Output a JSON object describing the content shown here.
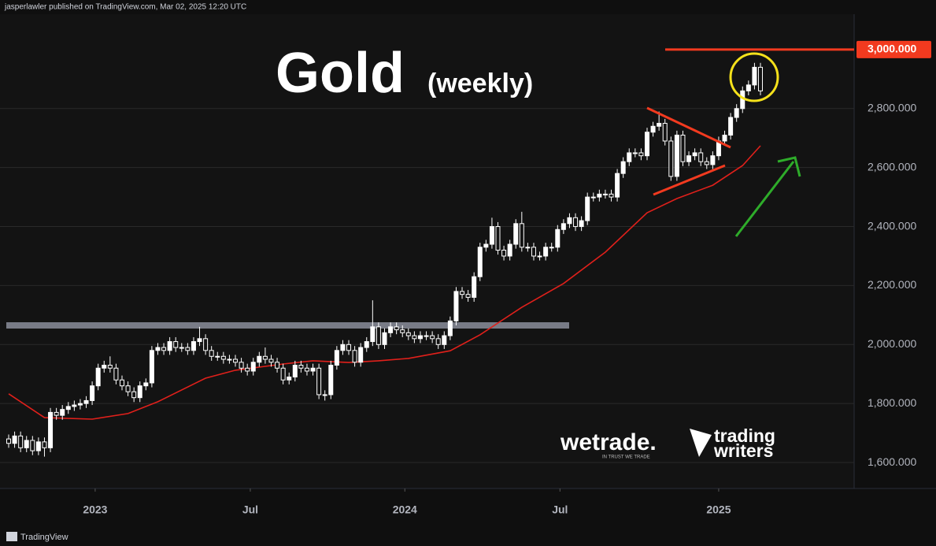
{
  "header": "jasperlawler published on TradingView.com, Mar 02, 2025 12:20 UTC",
  "footer": "TradingView",
  "watermarks": {
    "brand1": "wetrade.",
    "brand1_tagline": "IN TRUST WE TRADE",
    "brand2_line1": "trading",
    "brand2_line2": "writers"
  },
  "chart_data": {
    "type": "candlestick",
    "title": "Gold",
    "subtitle": "(weekly)",
    "up_color": "#ffffff",
    "down_color": "#131313",
    "grid": true,
    "ylim": [
      1512,
      3120
    ],
    "xlim": [
      -1.45,
      141.7
    ],
    "yticks": [
      {
        "value": 1600,
        "label": "1,600.000"
      },
      {
        "value": 1800,
        "label": "1,800.000"
      },
      {
        "value": 2000,
        "label": "2,000.000"
      },
      {
        "value": 2200,
        "label": "2,200.000"
      },
      {
        "value": 2400,
        "label": "2,400.000"
      },
      {
        "value": 2600,
        "label": "2,600.000"
      },
      {
        "value": 2800,
        "label": "2,800.000"
      }
    ],
    "xticks": [
      {
        "value": 14.5,
        "label": "2023"
      },
      {
        "value": 40.5,
        "label": "Jul"
      },
      {
        "value": 66.4,
        "label": "2024"
      },
      {
        "value": 92.4,
        "label": "Jul"
      },
      {
        "value": 119,
        "label": "2025"
      }
    ],
    "open": [
      1680,
      1665,
      1690,
      1650,
      1675,
      1640,
      1670,
      1650,
      1770,
      1760,
      1780,
      1790,
      1795,
      1800,
      1810,
      1860,
      1920,
      1930,
      1920,
      1880,
      1860,
      1840,
      1820,
      1860,
      1870,
      1980,
      1990,
      1980,
      2010,
      1990,
      1990,
      1980,
      2010,
      2020,
      1980,
      1960,
      1960,
      1950,
      1950,
      1940,
      1920,
      1910,
      1940,
      1960,
      1950,
      1940,
      1920,
      1880,
      1890,
      1930,
      1920,
      1910,
      1920,
      1830,
      1830,
      1930,
      1980,
      2000,
      1980,
      1940,
      1990,
      2010,
      2060,
      2000,
      2040,
      2060,
      2050,
      2040,
      2030,
      2020,
      2030,
      2030,
      2020,
      2000,
      2030,
      2080,
      2180,
      2170,
      2160,
      2230,
      2330,
      2340,
      2400,
      2320,
      2300,
      2340,
      2410,
      2330,
      2330,
      2300,
      2300,
      2330,
      2330,
      2390,
      2410,
      2430,
      2400,
      2420,
      2500,
      2500,
      2510,
      2510,
      2500,
      2580,
      2620,
      2650,
      2650,
      2640,
      2720,
      2740,
      2750,
      2690,
      2570,
      2710,
      2620,
      2640,
      2650,
      2620,
      2610,
      2640,
      2690,
      2710,
      2770,
      2800,
      2860,
      2880,
      2940
    ],
    "high": [
      1695,
      1705,
      1705,
      1690,
      1690,
      1685,
      1685,
      1785,
      1785,
      1795,
      1805,
      1810,
      1815,
      1825,
      1875,
      1935,
      1945,
      1960,
      1935,
      1895,
      1875,
      1855,
      1875,
      1885,
      1995,
      2005,
      2005,
      2025,
      2025,
      2005,
      2005,
      2025,
      2060,
      2035,
      1995,
      1975,
      1975,
      1965,
      1965,
      1955,
      1935,
      1955,
      1975,
      1990,
      1965,
      1955,
      1935,
      1905,
      1945,
      1945,
      1935,
      1935,
      1935,
      1845,
      1945,
      1995,
      2015,
      2015,
      1995,
      2005,
      2025,
      2150,
      2075,
      2055,
      2075,
      2075,
      2065,
      2055,
      2045,
      2045,
      2045,
      2045,
      2035,
      2045,
      2095,
      2195,
      2195,
      2185,
      2245,
      2345,
      2355,
      2430,
      2415,
      2335,
      2355,
      2425,
      2450,
      2345,
      2345,
      2315,
      2345,
      2345,
      2405,
      2425,
      2445,
      2445,
      2435,
      2515,
      2515,
      2525,
      2525,
      2525,
      2595,
      2635,
      2665,
      2665,
      2665,
      2735,
      2755,
      2790,
      2765,
      2705,
      2725,
      2725,
      2655,
      2665,
      2665,
      2635,
      2655,
      2705,
      2725,
      2785,
      2815,
      2875,
      2895,
      2955,
      2955
    ],
    "low": [
      1650,
      1650,
      1635,
      1635,
      1625,
      1625,
      1620,
      1635,
      1745,
      1745,
      1765,
      1775,
      1780,
      1785,
      1795,
      1845,
      1905,
      1905,
      1865,
      1845,
      1825,
      1805,
      1805,
      1845,
      1855,
      1965,
      1965,
      1965,
      1975,
      1975,
      1965,
      1965,
      1995,
      1965,
      1945,
      1945,
      1935,
      1935,
      1925,
      1905,
      1895,
      1895,
      1925,
      1935,
      1925,
      1905,
      1865,
      1865,
      1875,
      1905,
      1895,
      1895,
      1815,
      1810,
      1815,
      1915,
      1965,
      1965,
      1925,
      1925,
      1975,
      1995,
      1985,
      1985,
      2025,
      2035,
      2025,
      2015,
      2005,
      2005,
      2015,
      2005,
      1985,
      1985,
      2015,
      2065,
      2155,
      2145,
      2145,
      2215,
      2315,
      2325,
      2305,
      2285,
      2285,
      2325,
      2315,
      2315,
      2285,
      2285,
      2285,
      2315,
      2315,
      2375,
      2395,
      2385,
      2385,
      2405,
      2485,
      2485,
      2495,
      2485,
      2485,
      2565,
      2605,
      2635,
      2625,
      2625,
      2705,
      2725,
      2675,
      2555,
      2555,
      2605,
      2605,
      2625,
      2605,
      2595,
      2595,
      2625,
      2675,
      2695,
      2755,
      2785,
      2845,
      2865,
      2845
    ],
    "close": [
      1665,
      1690,
      1650,
      1675,
      1640,
      1670,
      1650,
      1770,
      1760,
      1780,
      1790,
      1795,
      1800,
      1810,
      1860,
      1920,
      1930,
      1920,
      1880,
      1860,
      1840,
      1820,
      1860,
      1870,
      1980,
      1990,
      1980,
      2010,
      1990,
      1990,
      1980,
      2010,
      2020,
      1980,
      1960,
      1960,
      1950,
      1950,
      1940,
      1920,
      1910,
      1940,
      1960,
      1950,
      1940,
      1920,
      1880,
      1890,
      1930,
      1920,
      1910,
      1920,
      1830,
      1830,
      1930,
      1980,
      2000,
      1980,
      1940,
      1990,
      2010,
      2060,
      2000,
      2040,
      2060,
      2050,
      2040,
      2030,
      2020,
      2030,
      2030,
      2020,
      2000,
      2030,
      2080,
      2180,
      2170,
      2160,
      2230,
      2330,
      2340,
      2400,
      2320,
      2300,
      2340,
      2410,
      2330,
      2330,
      2300,
      2300,
      2330,
      2330,
      2390,
      2410,
      2430,
      2400,
      2420,
      2500,
      2500,
      2510,
      2510,
      2500,
      2580,
      2620,
      2650,
      2650,
      2640,
      2720,
      2740,
      2750,
      2690,
      2570,
      2710,
      2620,
      2640,
      2650,
      2620,
      2610,
      2640,
      2690,
      2710,
      2770,
      2800,
      2860,
      2880,
      2940,
      2860
    ],
    "ma": {
      "color": "#e0201b",
      "x": [
        0,
        6,
        14,
        20,
        25,
        33,
        38,
        46,
        51,
        57,
        62,
        67,
        74,
        79,
        86,
        93,
        100,
        107,
        112,
        118,
        123,
        126
      ],
      "values": [
        1833,
        1752,
        1747,
        1766,
        1806,
        1886,
        1913,
        1934,
        1945,
        1939,
        1945,
        1953,
        1979,
        2033,
        2126,
        2207,
        2313,
        2447,
        2495,
        2540,
        2607,
        2674
      ]
    },
    "support_level": {
      "value": 2065,
      "color": "#787b86"
    },
    "target_level": {
      "value": 3000,
      "label": "3,000.000",
      "color": "#f23a1f"
    }
  }
}
